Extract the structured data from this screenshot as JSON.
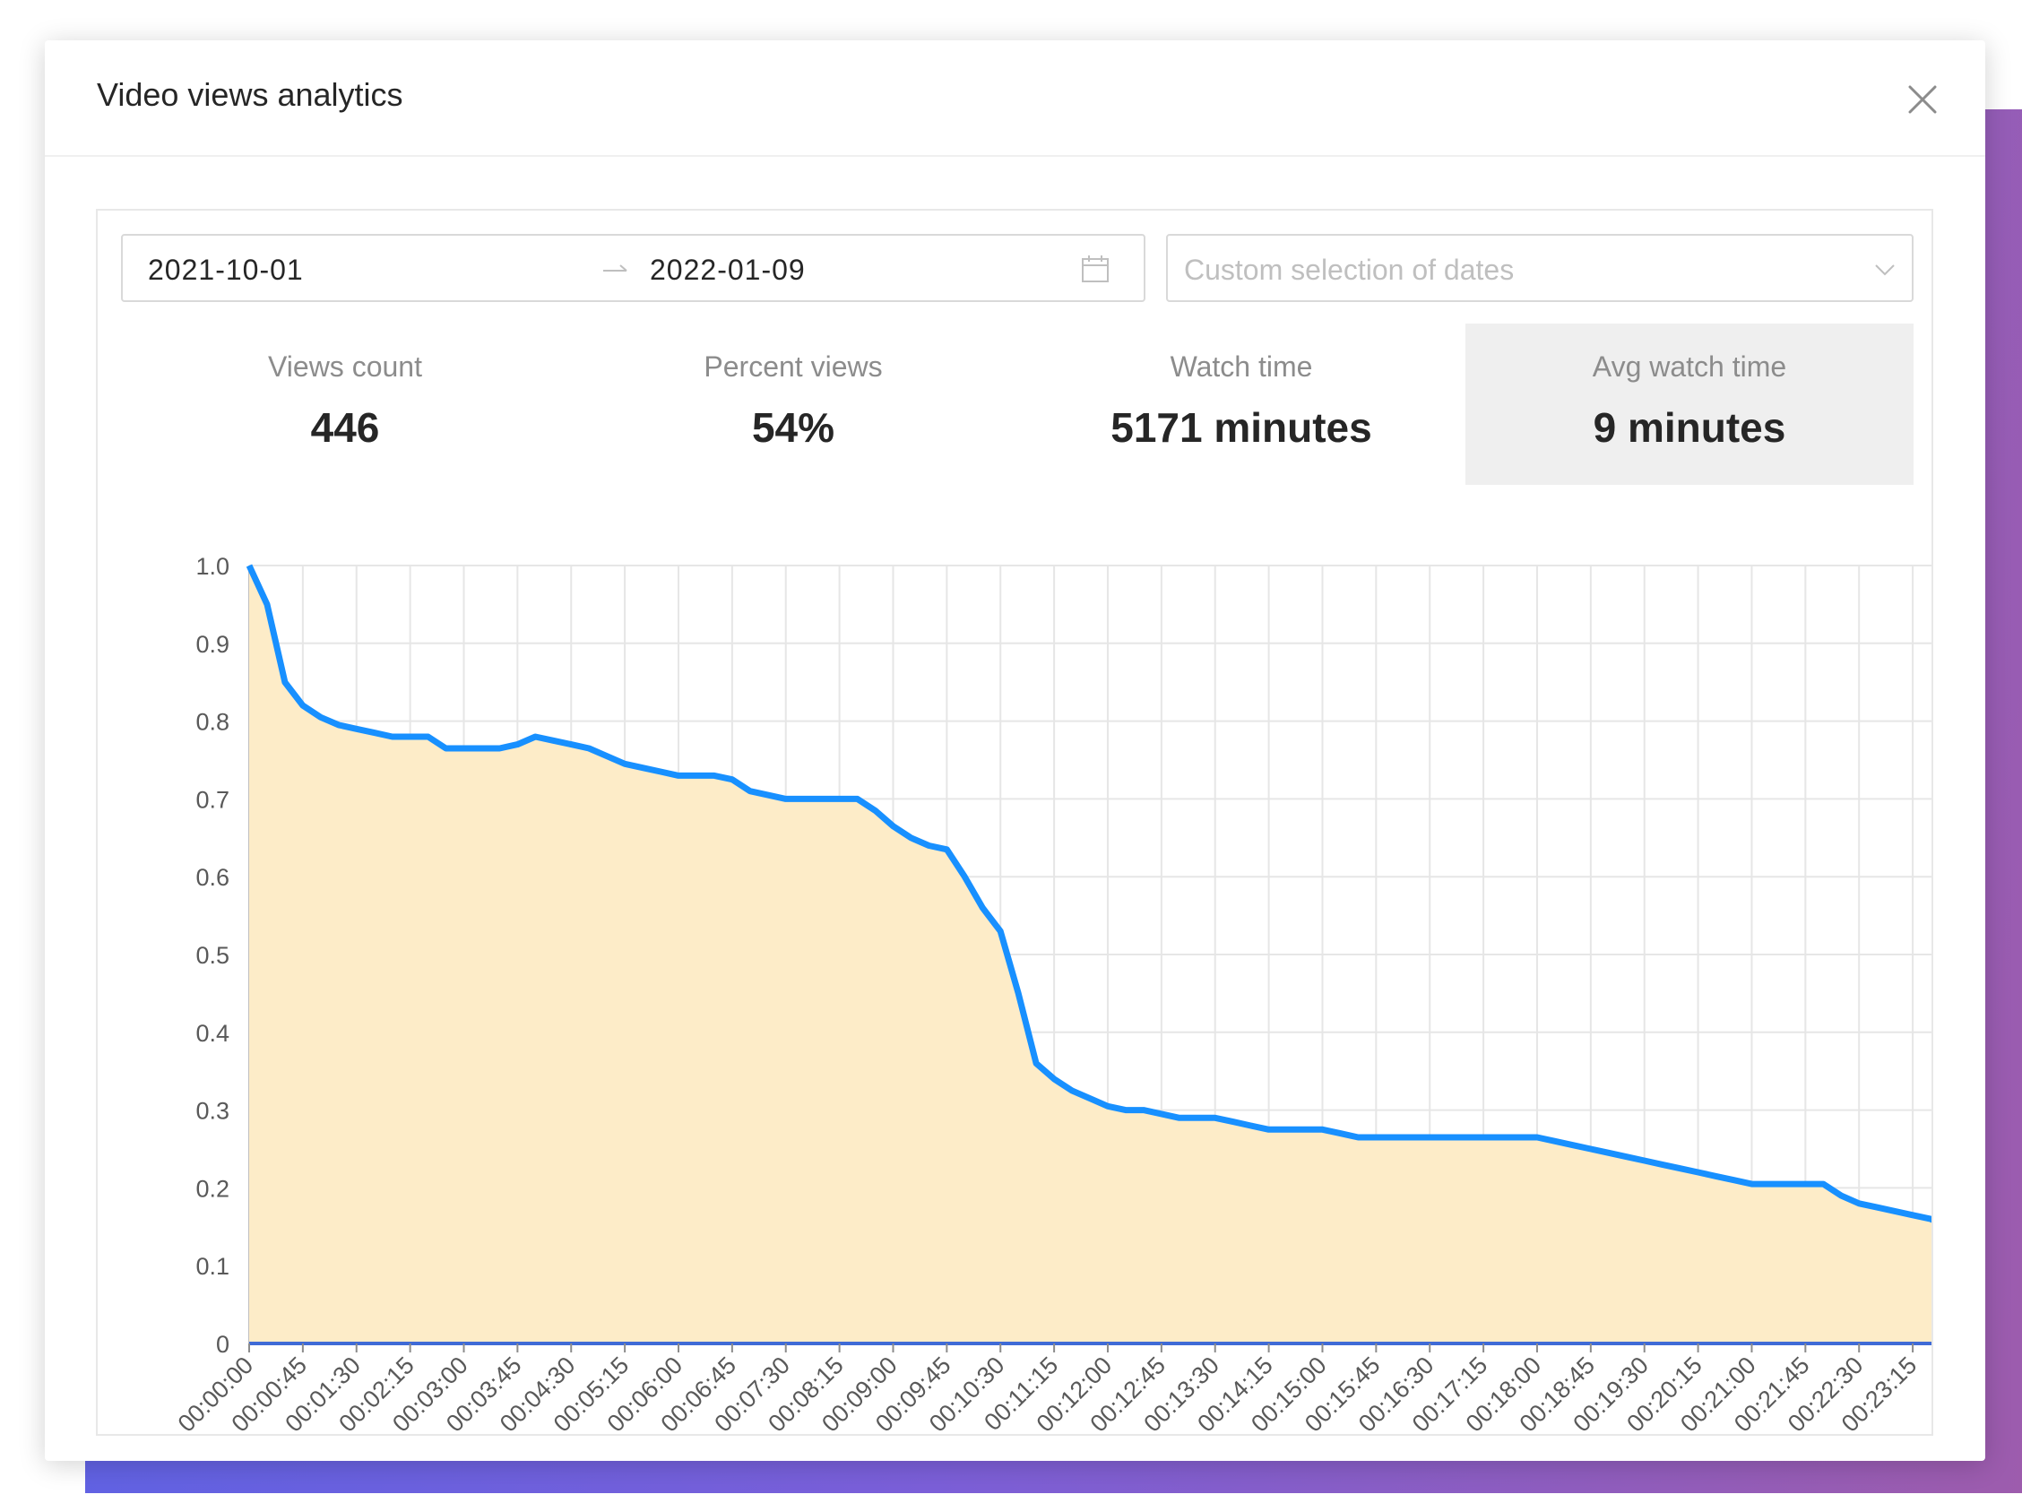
{
  "modal": {
    "title": "Video views analytics",
    "close_icon": "close-icon"
  },
  "filters": {
    "start_date": "2021-10-01",
    "end_date": "2022-01-09",
    "arrow_icon": "arrow-right-icon",
    "calendar_icon": "calendar-icon",
    "select_placeholder": "Custom selection of dates",
    "chevron_icon": "chevron-down-icon"
  },
  "stats": [
    {
      "label": "Views count",
      "value": "446"
    },
    {
      "label": "Percent views",
      "value": "54%"
    },
    {
      "label": "Watch time",
      "value": "5171 minutes"
    },
    {
      "label": "Avg watch time",
      "value": "9 minutes",
      "active": true
    }
  ],
  "colors": {
    "line": "#1890ff",
    "area": "#fdecc8",
    "baseline": "#3f6bd6",
    "grid": "#e6e6e6",
    "active_stat_bg": "#efefef"
  },
  "chart_data": {
    "type": "area",
    "title": "",
    "xlabel": "",
    "ylabel": "",
    "ylim": [
      0,
      1
    ],
    "y_ticks": [
      "0",
      "0.1",
      "0.2",
      "0.3",
      "0.4",
      "0.5",
      "0.6",
      "0.7",
      "0.8",
      "0.9",
      "1.0"
    ],
    "grid": true,
    "x_tick_labels": [
      "00:00:00",
      "00:00:45",
      "00:01:30",
      "00:02:15",
      "00:03:00",
      "00:03:45",
      "00:04:30",
      "00:05:15",
      "00:06:00",
      "00:06:45",
      "00:07:30",
      "00:08:15",
      "00:09:00",
      "00:09:45",
      "00:10:30",
      "00:11:15",
      "00:12:00",
      "00:12:45",
      "00:13:30",
      "00:14:15",
      "00:15:00",
      "00:15:45",
      "00:16:30",
      "00:17:15",
      "00:18:00",
      "00:18:45",
      "00:19:30",
      "00:20:15",
      "00:21:00",
      "00:21:45",
      "00:22:30",
      "00:23:15"
    ],
    "series": [
      {
        "x": [
          "00:00:00",
          "00:00:15",
          "00:00:30",
          "00:00:45",
          "00:01:00",
          "00:01:15",
          "00:01:30",
          "00:01:45",
          "00:02:00",
          "00:02:15",
          "00:02:30",
          "00:02:45",
          "00:03:00",
          "00:03:15",
          "00:03:30",
          "00:03:45",
          "00:04:00",
          "00:04:15",
          "00:04:30",
          "00:04:45",
          "00:05:00",
          "00:05:15",
          "00:05:30",
          "00:05:45",
          "00:06:00",
          "00:06:15",
          "00:06:30",
          "00:06:45",
          "00:07:00",
          "00:07:15",
          "00:07:30",
          "00:07:45",
          "00:08:00",
          "00:08:15",
          "00:08:30",
          "00:08:45",
          "00:09:00",
          "00:09:15",
          "00:09:30",
          "00:09:45",
          "00:10:00",
          "00:10:15",
          "00:10:30",
          "00:10:45",
          "00:11:00",
          "00:11:15",
          "00:11:30",
          "00:11:45",
          "00:12:00",
          "00:12:15",
          "00:12:30",
          "00:12:45",
          "00:13:00",
          "00:13:15",
          "00:13:30",
          "00:13:45",
          "00:14:00",
          "00:14:15",
          "00:14:30",
          "00:14:45",
          "00:15:00",
          "00:15:15",
          "00:15:30",
          "00:15:45",
          "00:16:00",
          "00:16:15",
          "00:16:30",
          "00:16:45",
          "00:17:00",
          "00:17:15",
          "00:17:30",
          "00:17:45",
          "00:18:00",
          "00:18:15",
          "00:18:30",
          "00:18:45",
          "00:19:00",
          "00:19:15",
          "00:19:30",
          "00:19:45",
          "00:20:00",
          "00:20:15",
          "00:20:30",
          "00:20:45",
          "00:21:00",
          "00:21:15",
          "00:21:30",
          "00:21:45",
          "00:22:00",
          "00:22:15",
          "00:22:30",
          "00:22:45",
          "00:23:00",
          "00:23:15",
          "00:23:30",
          "00:23:45"
        ],
        "values": [
          1.0,
          0.95,
          0.85,
          0.82,
          0.805,
          0.795,
          0.79,
          0.785,
          0.78,
          0.78,
          0.78,
          0.765,
          0.765,
          0.765,
          0.765,
          0.77,
          0.78,
          0.775,
          0.77,
          0.765,
          0.755,
          0.745,
          0.74,
          0.735,
          0.73,
          0.73,
          0.73,
          0.725,
          0.71,
          0.705,
          0.7,
          0.7,
          0.7,
          0.7,
          0.7,
          0.685,
          0.665,
          0.65,
          0.64,
          0.635,
          0.6,
          0.56,
          0.53,
          0.45,
          0.36,
          0.34,
          0.325,
          0.315,
          0.305,
          0.3,
          0.3,
          0.295,
          0.29,
          0.29,
          0.29,
          0.285,
          0.28,
          0.275,
          0.275,
          0.275,
          0.275,
          0.27,
          0.265,
          0.265,
          0.265,
          0.265,
          0.265,
          0.265,
          0.265,
          0.265,
          0.265,
          0.265,
          0.265,
          0.26,
          0.255,
          0.25,
          0.245,
          0.24,
          0.235,
          0.23,
          0.225,
          0.22,
          0.215,
          0.21,
          0.205,
          0.205,
          0.205,
          0.205,
          0.205,
          0.19,
          0.18,
          0.175,
          0.17,
          0.165,
          0.16,
          0.15
        ]
      }
    ]
  }
}
